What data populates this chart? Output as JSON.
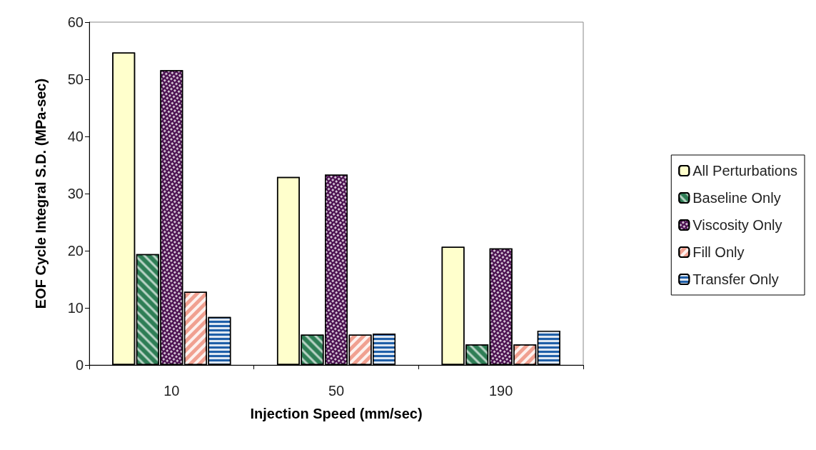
{
  "chart_data": {
    "type": "bar",
    "xlabel": "Injection Speed (mm/sec)",
    "ylabel": "EOF Cycle Integral S.D. (MPa-sec)",
    "categories": [
      "10",
      "50",
      "190"
    ],
    "series": [
      {
        "name": "All Perturbations",
        "color": "#ffffcc",
        "values": [
          54.7,
          32.9,
          20.7
        ]
      },
      {
        "name": "Baseline Only",
        "color": "#2e7d55",
        "values": [
          19.4,
          5.3,
          3.6
        ]
      },
      {
        "name": "Viscosity Only",
        "color": "#4b1050",
        "values": [
          51.6,
          33.3,
          20.4
        ]
      },
      {
        "name": "Fill Only",
        "color": "#f0a090",
        "values": [
          12.8,
          5.3,
          3.6
        ]
      },
      {
        "name": "Transfer Only",
        "color": "#1f5fa8",
        "values": [
          8.4,
          5.5,
          6.0
        ]
      }
    ],
    "ylim": [
      0,
      60
    ],
    "yticks": [
      0,
      10,
      20,
      30,
      40,
      50,
      60
    ],
    "grid": false,
    "legend": "right"
  }
}
